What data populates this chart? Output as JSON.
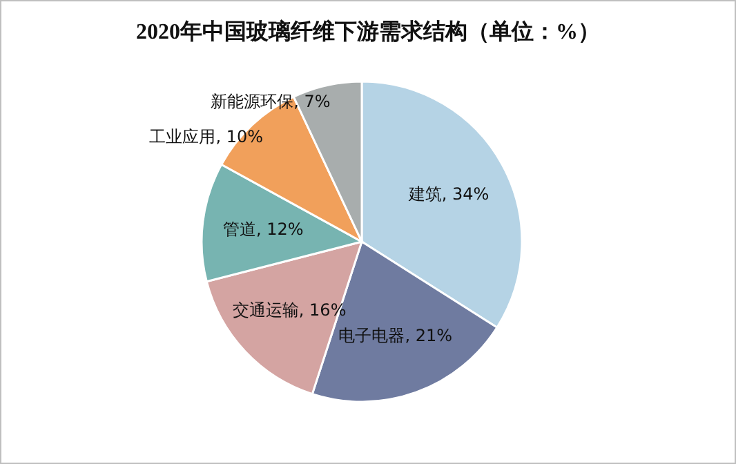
{
  "chart_data": {
    "type": "pie",
    "title": "2020年中国玻璃纤维下游需求结构（单位：%）",
    "categories": [
      "建筑",
      "电子电器",
      "交通运输",
      "管道",
      "工业应用",
      "新能源环保"
    ],
    "values": [
      34,
      21,
      16,
      12,
      10,
      7
    ],
    "value_labels": [
      "34%",
      "21%",
      "16%",
      "12%",
      "10%",
      "7%"
    ],
    "colors": [
      "#b5d3e5",
      "#6f7ba0",
      "#d4a4a2",
      "#77b4b1",
      "#f1a05b",
      "#a8adad"
    ]
  }
}
